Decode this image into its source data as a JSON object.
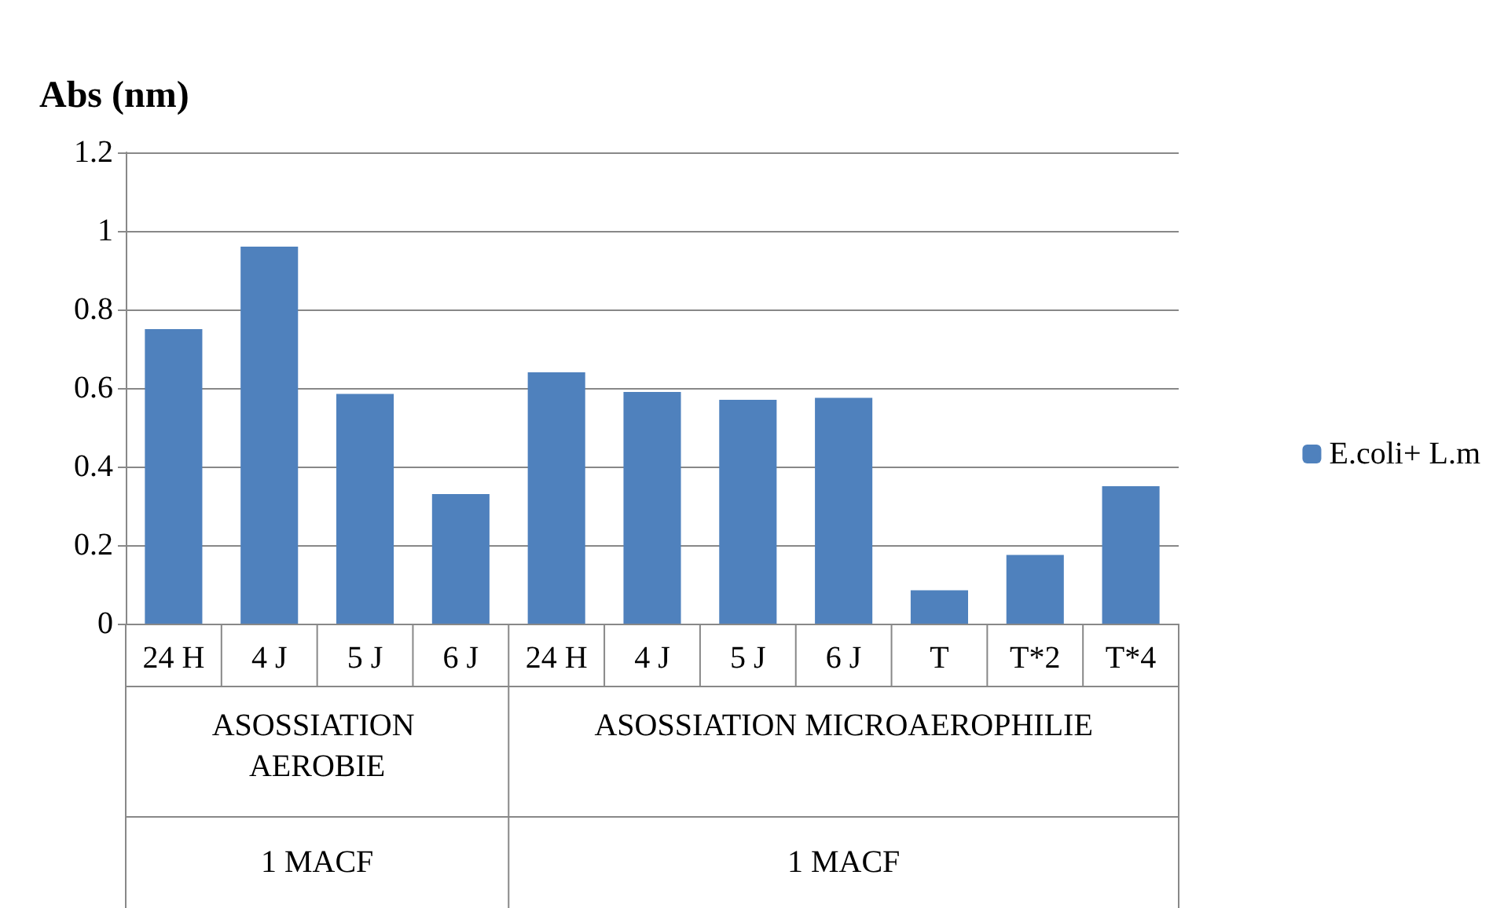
{
  "chart_data": {
    "type": "bar",
    "ylabel": "Abs (nm)",
    "categories": [
      "24 H",
      "4 J",
      "5 J",
      "6 J",
      "24 H",
      "4 J",
      "5 J",
      "6 J",
      "T",
      "T*2",
      "T*4"
    ],
    "series": [
      {
        "name": "E.coli+ L.m",
        "color": "#4f81bd",
        "values": [
          0.75,
          0.96,
          0.585,
          0.33,
          0.64,
          0.59,
          0.57,
          0.575,
          0.085,
          0.175,
          0.35
        ]
      }
    ],
    "ylim": [
      0,
      1.2
    ],
    "yticks": [
      0,
      0.2,
      0.4,
      0.6,
      0.8,
      1,
      1.2
    ],
    "grid": "y",
    "legend": "right",
    "annotations": [
      "ASOSSIATION AEROBIE",
      "ASOSSIATION MICROAEROPHILIE",
      "1 MACF",
      "1 MACF"
    ]
  }
}
